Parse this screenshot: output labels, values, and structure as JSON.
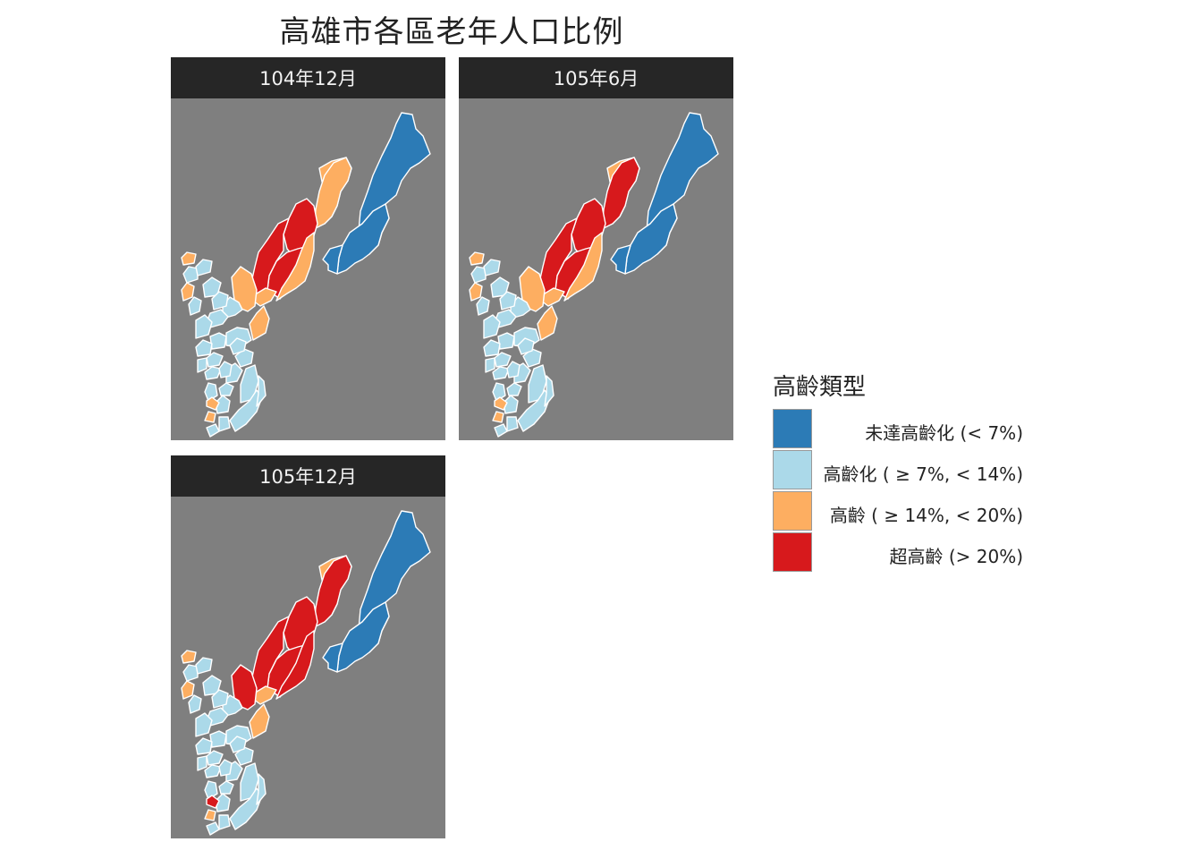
{
  "title": "高雄市各區老年人口比例",
  "panels": [
    {
      "label": "104年12月",
      "districts": {
        "taoyuan": "a",
        "namaxia": "a",
        "maolin": "a",
        "liugui": "c",
        "jiaxian": "c",
        "shanlin": "d",
        "neimen": "d",
        "qishan": "d",
        "meinong": "c",
        "alian": "c",
        "tianliao": "c",
        "yanchao": "b",
        "qiaotou": "b",
        "dashu": "c",
        "dashe": "b",
        "renwu": "b",
        "niaosong": "b",
        "daliao": "b",
        "linyuan": "b",
        "linyuan_south": "b",
        "fengshan": "b",
        "zuoying": "b",
        "gushan": "b",
        "nanzi": "b",
        "qianzhen": "b",
        "lingya": "b",
        "sanmin": "b",
        "xinxing": "b",
        "qianjin": "c",
        "yancheng": "c",
        "cijin": "b",
        "xiaogang": "b",
        "luzhu": "b",
        "gangshan": "b",
        "alian_b": "b",
        "hunei": "b",
        "qieding": "c",
        "yong_an": "b",
        "mituo": "b",
        "ziguan": "b",
        "yanchao_b": "c",
        "xiaogang_b": "b"
      }
    },
    {
      "label": "105年6月",
      "districts": {
        "taoyuan": "a",
        "namaxia": "a",
        "maolin": "a",
        "liugui": "c",
        "jiaxian": "d",
        "shanlin": "d",
        "neimen": "d",
        "qishan": "d",
        "meinong": "c",
        "alian": "c",
        "tianliao": "c",
        "yanchao": "b",
        "qiaotou": "b",
        "dashu": "c",
        "dashe": "b",
        "renwu": "b",
        "niaosong": "b",
        "daliao": "b",
        "linyuan": "b",
        "linyuan_south": "b",
        "fengshan": "b",
        "zuoying": "b",
        "gushan": "b",
        "nanzi": "b",
        "qianzhen": "b",
        "lingya": "b",
        "sanmin": "b",
        "xinxing": "b",
        "qianjin": "c",
        "yancheng": "c",
        "cijin": "b",
        "xiaogang": "b",
        "luzhu": "b",
        "gangshan": "b",
        "alian_b": "b",
        "hunei": "b",
        "qieding": "c",
        "yong_an": "b",
        "mituo": "b",
        "ziguan": "b",
        "yanchao_b": "c",
        "xiaogang_b": "b"
      }
    },
    {
      "label": "105年12月",
      "districts": {
        "taoyuan": "a",
        "namaxia": "a",
        "maolin": "a",
        "liugui": "c",
        "jiaxian": "d",
        "shanlin": "d",
        "neimen": "d",
        "qishan": "d",
        "meinong": "d",
        "alian": "c",
        "tianliao": "d",
        "yanchao": "b",
        "qiaotou": "b",
        "dashu": "c",
        "dashe": "b",
        "renwu": "b",
        "niaosong": "b",
        "daliao": "b",
        "linyuan": "b",
        "linyuan_south": "b",
        "fengshan": "b",
        "zuoying": "b",
        "gushan": "b",
        "nanzi": "b",
        "qianzhen": "b",
        "lingya": "b",
        "sanmin": "b",
        "xinxing": "b",
        "qianjin": "d",
        "yancheng": "c",
        "cijin": "b",
        "xiaogang": "b",
        "luzhu": "b",
        "gangshan": "b",
        "alian_b": "b",
        "hunei": "b",
        "qieding": "c",
        "yong_an": "b",
        "mituo": "b",
        "ziguan": "b",
        "yanchao_b": "c",
        "xiaogang_b": "b"
      }
    }
  ],
  "legend": {
    "title": "高齡類型",
    "items": [
      {
        "key": "a",
        "label": "未達高齡化 (< 7%)",
        "color": "#2c7bb6"
      },
      {
        "key": "b",
        "label": "高齡化 ( ≥ 7%, < 14%)",
        "color": "#abd9e9"
      },
      {
        "key": "c",
        "label": "高齡 ( ≥ 14%, < 20%)",
        "color": "#fdae61"
      },
      {
        "key": "d",
        "label": "超高齡 (> 20%)",
        "color": "#d7191c"
      }
    ]
  },
  "background_color": "#7f7f7f"
}
